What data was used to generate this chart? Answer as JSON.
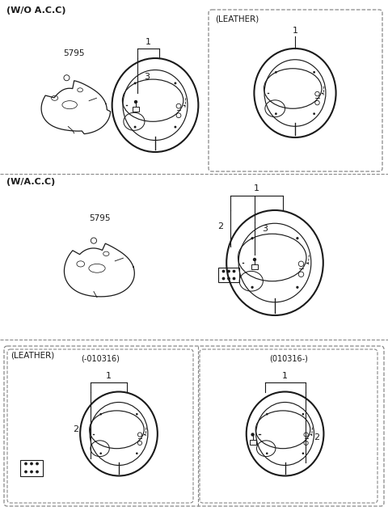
{
  "bg_color": "#ffffff",
  "line_color": "#1a1a1a",
  "dash_color": "#888888",
  "section1_label": "(W/O A.C.C)",
  "section2_label": "(W/A.C.C)",
  "leather_label": "(LEATHER)",
  "leather_sub1": "(-010316)",
  "leather_sub2": "(010316-)",
  "part_5795": "5795",
  "num1": "1",
  "num2": "2",
  "num3": "3",
  "fig_width": 4.8,
  "fig_height": 6.32,
  "dpi": 100
}
